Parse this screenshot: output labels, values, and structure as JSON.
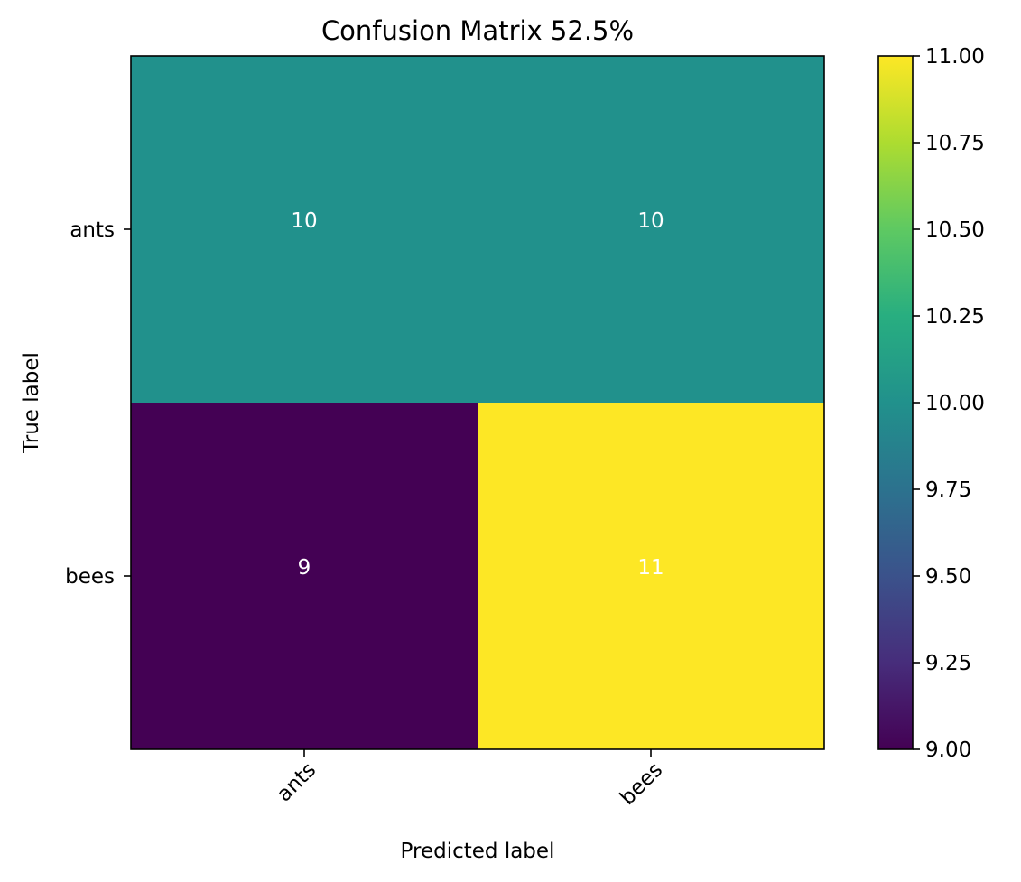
{
  "chart_data": {
    "type": "heatmap",
    "title": "Confusion Matrix 52.5%",
    "xlabel": "Predicted label",
    "ylabel": "True label",
    "x_categories": [
      "ants",
      "bees"
    ],
    "y_categories": [
      "ants",
      "bees"
    ],
    "values": [
      [
        10,
        10
      ],
      [
        9,
        11
      ]
    ],
    "colormap": "viridis",
    "colorbar": {
      "range": [
        9.0,
        11.0
      ],
      "ticks": [
        "9.00",
        "9.25",
        "9.50",
        "9.75",
        "10.00",
        "10.25",
        "10.50",
        "10.75",
        "11.00"
      ]
    },
    "grid": false,
    "colors": {
      "cell_9": "#440154",
      "cell_10": "#21918c",
      "cell_11": "#fde725"
    }
  }
}
